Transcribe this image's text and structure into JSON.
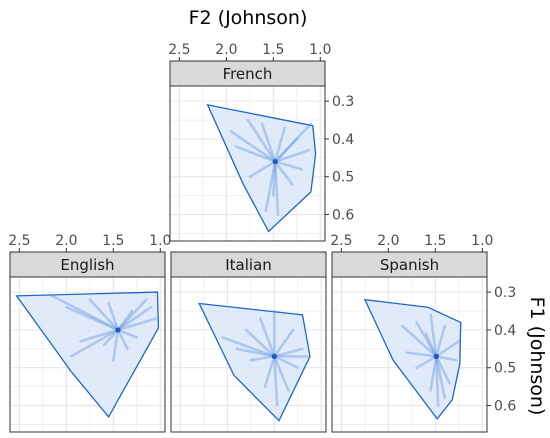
{
  "chart_data": {
    "type": "scatter",
    "x_axis": {
      "label": "F2 (Johnson)",
      "position": "top",
      "reversed": true,
      "lim": [
        0.95,
        2.6
      ],
      "ticks": [
        2.5,
        2.0,
        1.5,
        1.0
      ],
      "tick_labels": [
        "2.5",
        "2.0",
        "1.5",
        "1.0"
      ]
    },
    "y_axis": {
      "label": "F1 (Johnson)",
      "position": "right",
      "reversed": true,
      "lim": [
        0.26,
        0.67
      ],
      "ticks": [
        0.3,
        0.4,
        0.5,
        0.6
      ],
      "tick_labels": [
        "0.3",
        "0.4",
        "0.5",
        "0.6"
      ]
    },
    "grid": true,
    "panels": [
      {
        "name": "French",
        "center": [
          1.48,
          0.46
        ],
        "hull": [
          [
            2.2,
            0.31
          ],
          [
            1.08,
            0.365
          ],
          [
            1.05,
            0.44
          ],
          [
            1.1,
            0.54
          ],
          [
            1.55,
            0.645
          ],
          [
            1.82,
            0.52
          ]
        ],
        "spokes": [
          [
            1.95,
            0.38
          ],
          [
            1.77,
            0.35
          ],
          [
            1.62,
            0.36
          ],
          [
            1.38,
            0.37
          ],
          [
            1.25,
            0.4
          ],
          [
            1.12,
            0.43
          ],
          [
            1.2,
            0.48
          ],
          [
            1.3,
            0.52
          ],
          [
            1.5,
            0.55
          ],
          [
            1.58,
            0.59
          ],
          [
            1.45,
            0.6
          ],
          [
            1.75,
            0.5
          ],
          [
            1.9,
            0.42
          ],
          [
            1.1,
            0.36
          ]
        ]
      },
      {
        "name": "English",
        "center": [
          1.45,
          0.4
        ],
        "hull": [
          [
            2.53,
            0.31
          ],
          [
            1.03,
            0.3
          ],
          [
            1.02,
            0.395
          ],
          [
            1.55,
            0.63
          ],
          [
            1.95,
            0.51
          ]
        ],
        "spokes": [
          [
            2.0,
            0.34
          ],
          [
            2.15,
            0.31
          ],
          [
            1.75,
            0.32
          ],
          [
            1.55,
            0.33
          ],
          [
            1.3,
            0.35
          ],
          [
            1.15,
            0.32
          ],
          [
            1.05,
            0.37
          ],
          [
            1.25,
            0.42
          ],
          [
            1.35,
            0.45
          ],
          [
            1.5,
            0.48
          ],
          [
            1.6,
            0.44
          ],
          [
            1.85,
            0.43
          ],
          [
            1.95,
            0.47
          ],
          [
            1.1,
            0.34
          ]
        ]
      },
      {
        "name": "Italian",
        "center": [
          1.5,
          0.47
        ],
        "hull": [
          [
            2.3,
            0.33
          ],
          [
            1.2,
            0.36
          ],
          [
            1.12,
            0.47
          ],
          [
            1.45,
            0.64
          ],
          [
            1.93,
            0.52
          ]
        ],
        "spokes": [
          [
            1.8,
            0.4
          ],
          [
            1.65,
            0.37
          ],
          [
            1.5,
            0.35
          ],
          [
            1.3,
            0.4
          ],
          [
            1.2,
            0.45
          ],
          [
            1.15,
            0.47
          ],
          [
            1.25,
            0.5
          ],
          [
            1.35,
            0.56
          ],
          [
            1.47,
            0.6
          ],
          [
            1.6,
            0.55
          ],
          [
            1.75,
            0.48
          ],
          [
            1.9,
            0.45
          ],
          [
            2.05,
            0.42
          ]
        ]
      },
      {
        "name": "Spanish",
        "center": [
          1.49,
          0.47
        ],
        "hull": [
          [
            2.25,
            0.32
          ],
          [
            1.58,
            0.34
          ],
          [
            1.23,
            0.38
          ],
          [
            1.24,
            0.49
          ],
          [
            1.32,
            0.585
          ],
          [
            1.48,
            0.635
          ],
          [
            1.95,
            0.48
          ]
        ],
        "spokes": [
          [
            1.85,
            0.39
          ],
          [
            1.7,
            0.38
          ],
          [
            1.55,
            0.36
          ],
          [
            1.4,
            0.39
          ],
          [
            1.25,
            0.43
          ],
          [
            1.28,
            0.48
          ],
          [
            1.35,
            0.54
          ],
          [
            1.4,
            0.58
          ],
          [
            1.47,
            0.6
          ],
          [
            1.55,
            0.56
          ],
          [
            1.7,
            0.5
          ],
          [
            1.8,
            0.46
          ],
          [
            1.6,
            0.41
          ]
        ]
      }
    ]
  },
  "colors": {
    "hull_stroke": "#1f66c9",
    "hull_fill": "#dbe6f8",
    "spoke": "#6f9ee0",
    "center": "#1f5bbf",
    "strip_fill": "#d9d9d9",
    "grid": "#e6e6e6",
    "panel_border": "#333333"
  }
}
